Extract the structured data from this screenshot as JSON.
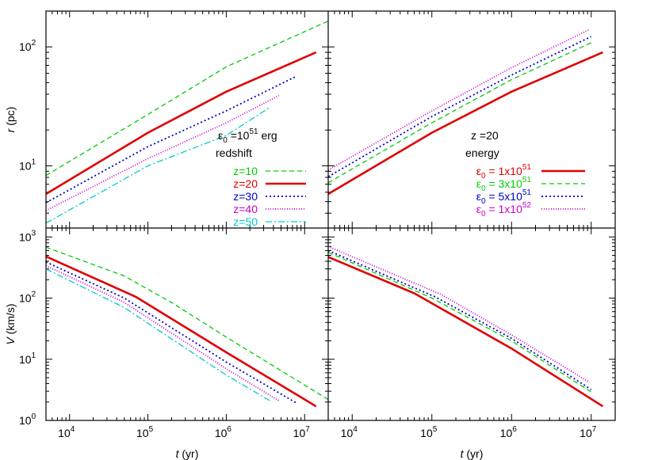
{
  "chart_data": [
    {
      "type": "line",
      "panel": "top-left",
      "xscale": "log",
      "yscale": "log",
      "xlim": [
        5000,
        20000000
      ],
      "ylim": [
        3,
        200
      ],
      "ylabel": "r (pc)",
      "yticks": [
        {
          "v": 10,
          "m": "10",
          "e": "1"
        },
        {
          "v": 100,
          "m": "10",
          "e": "2"
        }
      ],
      "legend": {
        "placement": "bottom-right",
        "title_line1": "ε",
        "title_sub": "0",
        "title_rest": " =10",
        "title_exp": "51",
        "title_unit": " erg",
        "title_line2": "redshift"
      },
      "series": [
        {
          "name": "z=10",
          "color": "#00cc00",
          "dash": "6,4",
          "width": 1.3,
          "points": [
            [
              5000,
              8.3
            ],
            [
              100000,
              27
            ],
            [
              1000000,
              68
            ],
            [
              20000000,
              165
            ]
          ]
        },
        {
          "name": "z=20",
          "color": "#e00000",
          "dash": "",
          "width": 2.6,
          "points": [
            [
              5000,
              5.8
            ],
            [
              100000,
              19
            ],
            [
              1000000,
              42
            ],
            [
              14000000,
              90
            ]
          ]
        },
        {
          "name": "z=30",
          "color": "#0000cc",
          "dash": "2,3",
          "width": 1.8,
          "points": [
            [
              5000,
              4.9
            ],
            [
              100000,
              14.5
            ],
            [
              1000000,
              29
            ],
            [
              8000000,
              57
            ]
          ]
        },
        {
          "name": "z=40",
          "color": "#cc00cc",
          "dash": "1,2",
          "width": 1.8,
          "points": [
            [
              5000,
              4.2
            ],
            [
              100000,
              11.5
            ],
            [
              1000000,
              23
            ],
            [
              4700000,
              39
            ]
          ]
        },
        {
          "name": "z=50",
          "color": "#00cccc",
          "dash": "8,3,2,3",
          "width": 1.3,
          "points": [
            [
              5000,
              3.3
            ],
            [
              100000,
              10
            ],
            [
              1000000,
              18
            ],
            [
              3600000,
              31
            ]
          ]
        }
      ]
    },
    {
      "type": "line",
      "panel": "top-right",
      "xscale": "log",
      "yscale": "log",
      "xlim": [
        5000,
        20000000
      ],
      "ylim": [
        3,
        200
      ],
      "legend": {
        "placement": "bottom-right",
        "title_line1": "z =20",
        "title_line2": "energy"
      },
      "series": [
        {
          "name": "ε0 = 1x10^51",
          "label_main": "ε",
          "label_sub": "0",
          "label_rest": " = 1x10",
          "label_exp": "51",
          "color": "#e00000",
          "dash": "",
          "width": 2.6,
          "points": [
            [
              5000,
              5.8
            ],
            [
              100000,
              19
            ],
            [
              1000000,
              42
            ],
            [
              14000000,
              90
            ]
          ]
        },
        {
          "name": "ε0 = 3x10^51",
          "label_main": "ε",
          "label_sub": "0",
          "label_rest": " = 3x10",
          "label_exp": "51",
          "color": "#00cc00",
          "dash": "6,4",
          "width": 1.3,
          "points": [
            [
              5000,
              7.2
            ],
            [
              100000,
              23
            ],
            [
              1000000,
              53
            ],
            [
              10500000,
              110
            ]
          ]
        },
        {
          "name": "ε0 = 5x10^51",
          "label_main": "ε",
          "label_sub": "0",
          "label_rest": " = 5x10",
          "label_exp": "51",
          "color": "#0000cc",
          "dash": "2,3",
          "width": 1.8,
          "points": [
            [
              5000,
              8.1
            ],
            [
              100000,
              26
            ],
            [
              1000000,
              58
            ],
            [
              10000000,
              122
            ]
          ]
        },
        {
          "name": "ε0 = 1x10^52",
          "label_main": "ε",
          "label_sub": "0",
          "label_rest": " = 1x10",
          "label_exp": "52",
          "color": "#cc00cc",
          "dash": "1,2",
          "width": 1.8,
          "points": [
            [
              5000,
              9.2
            ],
            [
              100000,
              29
            ],
            [
              1000000,
              67
            ],
            [
              9500000,
              140
            ]
          ]
        }
      ]
    },
    {
      "type": "line",
      "panel": "bottom-left",
      "xscale": "log",
      "yscale": "log",
      "xlim": [
        5000,
        20000000
      ],
      "ylim": [
        1,
        1400
      ],
      "xlabel": "t (yr)",
      "ylabel": "V (km/s)",
      "xticks": [
        {
          "v": 10000,
          "m": "10",
          "e": "4"
        },
        {
          "v": 100000,
          "m": "10",
          "e": "5"
        },
        {
          "v": 1000000,
          "m": "10",
          "e": "6"
        },
        {
          "v": 10000000,
          "m": "10",
          "e": "7"
        }
      ],
      "yticks": [
        {
          "v": 1,
          "m": "10",
          "e": "0"
        },
        {
          "v": 10,
          "m": "10",
          "e": "1"
        },
        {
          "v": 100,
          "m": "10",
          "e": "2"
        },
        {
          "v": 1000,
          "m": "10",
          "e": "3"
        }
      ],
      "series": [
        {
          "name": "z=10",
          "color": "#00cc00",
          "dash": "6,4",
          "width": 1.3,
          "points": [
            [
              5000,
              680
            ],
            [
              50000,
              230
            ],
            [
              200000,
              85
            ],
            [
              1000000,
              23
            ],
            [
              20000000,
              2.2
            ]
          ]
        },
        {
          "name": "z=20",
          "color": "#e00000",
          "dash": "",
          "width": 2.6,
          "points": [
            [
              5000,
              480
            ],
            [
              70000,
              105
            ],
            [
              1000000,
              13
            ],
            [
              14000000,
              1.7
            ]
          ]
        },
        {
          "name": "z=30",
          "color": "#0000cc",
          "dash": "2,3",
          "width": 1.8,
          "points": [
            [
              5000,
              390
            ],
            [
              50000,
              100
            ],
            [
              1000000,
              9
            ],
            [
              8000000,
              1.9
            ]
          ]
        },
        {
          "name": "z=40",
          "color": "#cc00cc",
          "dash": "1,2",
          "width": 1.8,
          "points": [
            [
              5000,
              340
            ],
            [
              50000,
              85
            ],
            [
              1000000,
              7
            ],
            [
              4700000,
              2.1
            ]
          ]
        },
        {
          "name": "z=50",
          "color": "#00cccc",
          "dash": "8,3,2,3",
          "width": 1.3,
          "points": [
            [
              5000,
              300
            ],
            [
              50000,
              70
            ],
            [
              1000000,
              5.5
            ],
            [
              3600000,
              2.1
            ]
          ]
        }
      ]
    },
    {
      "type": "line",
      "panel": "bottom-right",
      "xscale": "log",
      "yscale": "log",
      "xlim": [
        5000,
        20000000
      ],
      "ylim": [
        1,
        1400
      ],
      "xlabel": "t (yr)",
      "xticks": [
        {
          "v": 10000,
          "m": "10",
          "e": "4"
        },
        {
          "v": 100000,
          "m": "10",
          "e": "5"
        },
        {
          "v": 1000000,
          "m": "10",
          "e": "6"
        },
        {
          "v": 10000000,
          "m": "10",
          "e": "7"
        }
      ],
      "series": [
        {
          "name": "ε0 = 1x10^51",
          "color": "#e00000",
          "dash": "",
          "width": 2.6,
          "points": [
            [
              5000,
              470
            ],
            [
              60000,
              120
            ],
            [
              1000000,
              15
            ],
            [
              14000000,
              1.7
            ]
          ]
        },
        {
          "name": "ε0 = 3x10^51",
          "color": "#00cc00",
          "dash": "6,4",
          "width": 1.3,
          "points": [
            [
              5000,
              560
            ],
            [
              100000,
              100
            ],
            [
              1000000,
              20
            ],
            [
              10500000,
              2.8
            ]
          ]
        },
        {
          "name": "ε0 = 5x10^51",
          "color": "#0000cc",
          "dash": "2,3",
          "width": 1.8,
          "points": [
            [
              5000,
              600
            ],
            [
              110000,
              105
            ],
            [
              1000000,
              22
            ],
            [
              10000000,
              3.2
            ]
          ]
        },
        {
          "name": "ε0 = 1x10^52",
          "color": "#cc00cc",
          "dash": "1,2",
          "width": 1.8,
          "points": [
            [
              5000,
              700
            ],
            [
              130000,
              115
            ],
            [
              1000000,
              25
            ],
            [
              9500000,
              4.2
            ]
          ]
        }
      ]
    }
  ]
}
